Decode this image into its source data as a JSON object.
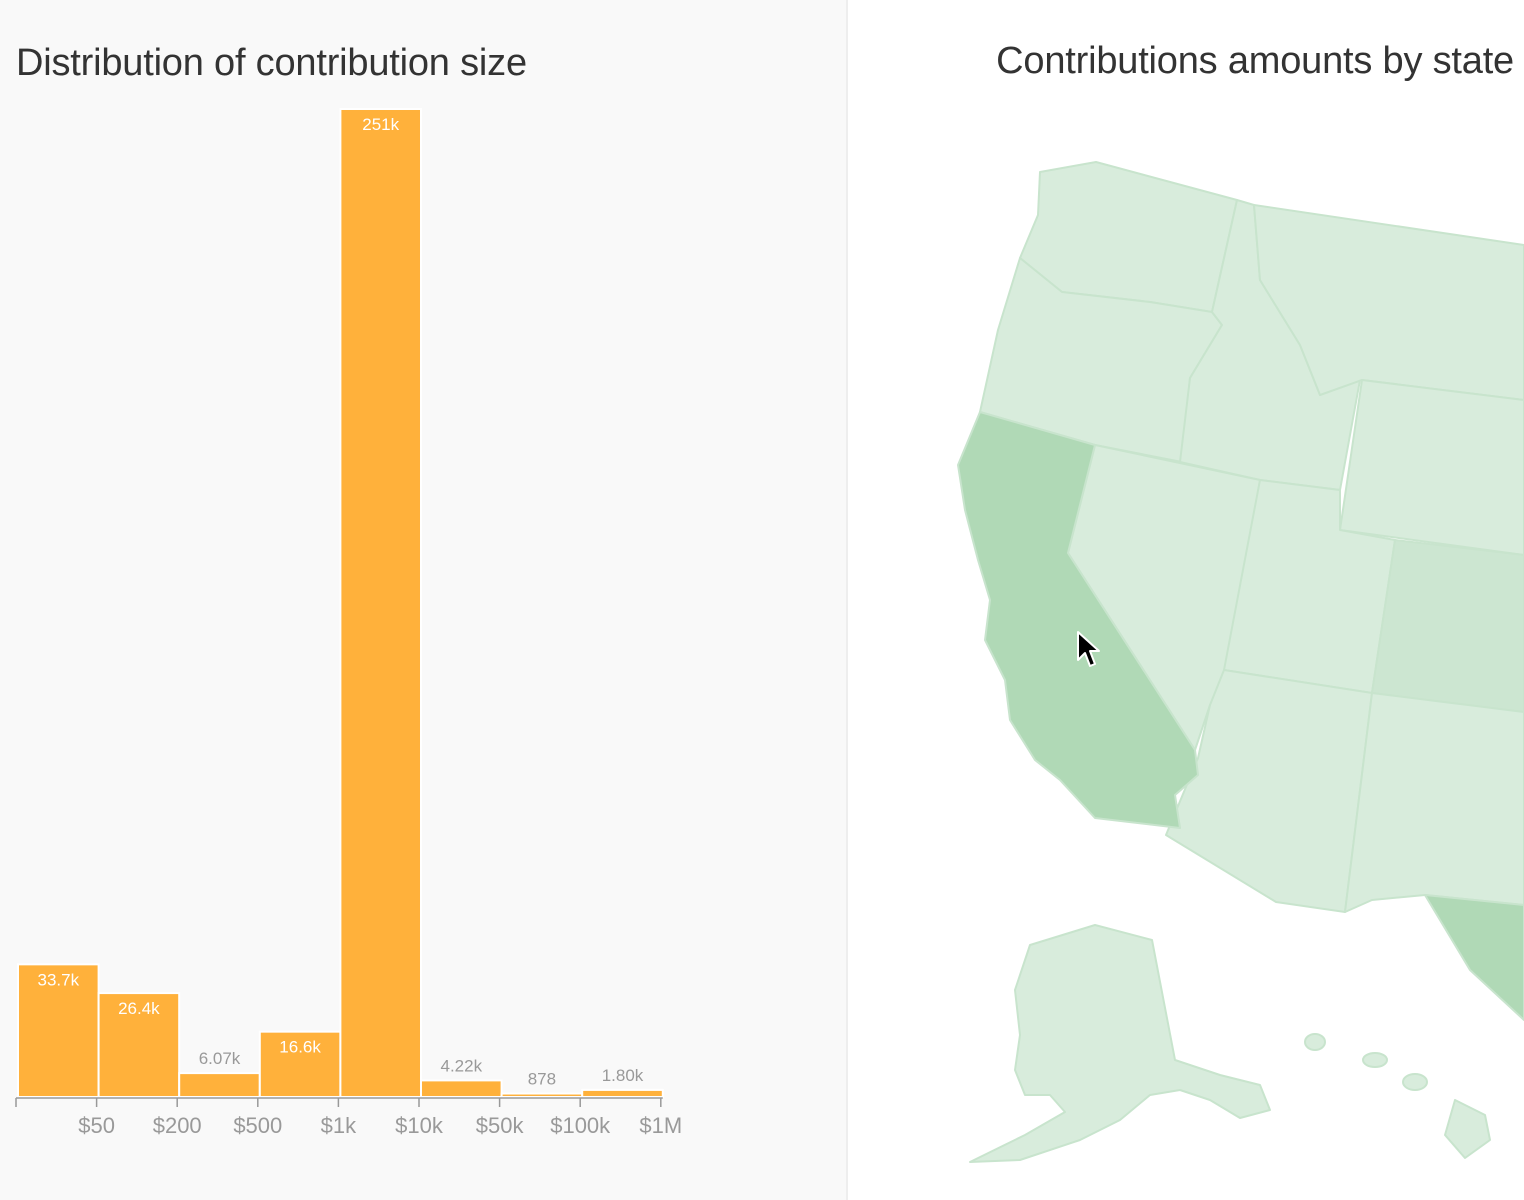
{
  "histogram": {
    "title": "Distribution of contribution size",
    "bar_color": "#ffb13b",
    "chart_data": {
      "type": "bar",
      "title": "Distribution of contribution size",
      "categories": [
        "< $50",
        "$50–$200",
        "$200–$500",
        "$500–$1k",
        "$1k–$10k",
        "$10k–$50k",
        "$50k–$100k",
        "$100k–$1M"
      ],
      "values": [
        33700,
        26400,
        6070,
        16600,
        251000,
        4220,
        878,
        1800
      ],
      "value_labels": [
        "33.7k",
        "26.4k",
        "6.07k",
        "16.6k",
        "251k",
        "4.22k",
        "878",
        "1.80k"
      ],
      "tick_labels": [
        "$50",
        "$200",
        "$500",
        "$1k",
        "$10k",
        "$50k",
        "$100k",
        "$1M"
      ],
      "ylim": [
        0,
        251000
      ],
      "xlabel": "",
      "ylabel": "",
      "grid": false
    }
  },
  "map": {
    "title": "Contributions amounts by state",
    "colors": {
      "light": "#d8ecdc",
      "medium": "#cce6d1",
      "dark": "#b0d9b6",
      "border": "#c8e4cd"
    },
    "highlighted_state": "California",
    "cursor_icon": "arrow-cursor-icon"
  }
}
